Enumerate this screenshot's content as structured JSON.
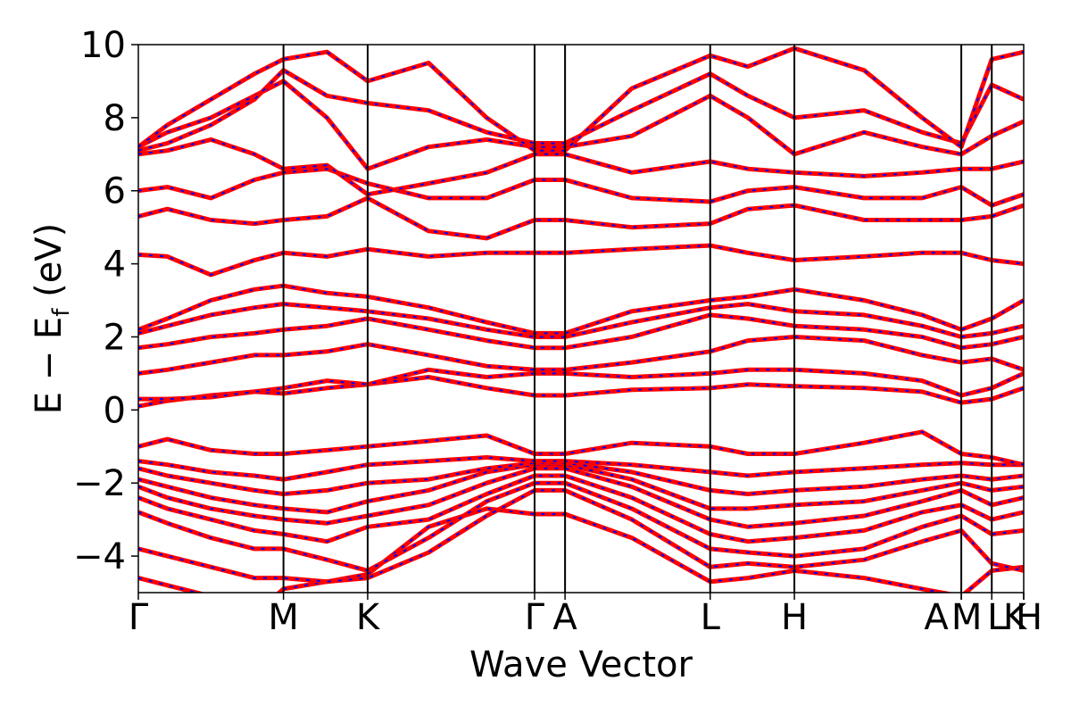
{
  "chart_data": {
    "type": "line",
    "xlabel": "Wave Vector",
    "ylabel": "E − E",
    "ylabel_sub": "f",
    "ylabel_unit": " (eV)",
    "ylim": [
      -5,
      10
    ],
    "yticks": [
      -4,
      -2,
      0,
      2,
      4,
      6,
      8,
      10
    ],
    "ytick_labels": [
      "−4",
      "−2",
      "0",
      "2",
      "4",
      "6",
      "8",
      "10"
    ],
    "grid": false,
    "legend": "none",
    "xlim": [
      0,
      3.05
    ],
    "kpoints": [
      {
        "label": "Γ",
        "x": 0.0
      },
      {
        "label": "M",
        "x": 0.5
      },
      {
        "label": "K",
        "x": 0.79
      },
      {
        "label": "Γ",
        "x": 1.365
      },
      {
        "label": "A",
        "x": 1.47
      },
      {
        "label": "L",
        "x": 1.97
      },
      {
        "label": "H",
        "x": 2.26
      },
      {
        "label": "A",
        "x": 2.835
      },
      {
        "label": "M",
        "x": 2.835
      },
      {
        "label": "L",
        "x": 2.94
      },
      {
        "label": "K",
        "x": 3.05
      },
      {
        "label": "H",
        "x": 3.05
      }
    ],
    "vlines_x": [
      0.5,
      0.79,
      1.365,
      1.47,
      1.97,
      2.26,
      2.835,
      2.94
    ],
    "style": {
      "band_color": "#ff0000",
      "overlay_color": "#0000ff",
      "frame_color": "#000000"
    },
    "series": [
      {
        "x": [
          0,
          0.1,
          0.25,
          0.4,
          0.5,
          0.65,
          0.79,
          1.0,
          1.2,
          1.365,
          1.47,
          1.7,
          1.97,
          2.1,
          2.26,
          2.5,
          2.7,
          2.835,
          2.94,
          3.05
        ],
        "y": [
          -4.6,
          -4.8,
          -5.1,
          -5.6,
          -4.9,
          -4.7,
          -4.5,
          -3.2,
          -2.7,
          -2.85,
          -2.85,
          -3.5,
          -4.7,
          -4.6,
          -4.4,
          -4.6,
          -4.9,
          -5.1,
          -4.4,
          -4.3
        ]
      },
      {
        "x": [
          0,
          0.1,
          0.25,
          0.4,
          0.5,
          0.65,
          0.79,
          1.0,
          1.2,
          1.365,
          1.47,
          1.7,
          1.97,
          2.1,
          2.26,
          2.5,
          2.7,
          2.835,
          2.94,
          3.05
        ],
        "y": [
          -3.8,
          -4.0,
          -4.3,
          -4.6,
          -4.6,
          -4.7,
          -4.6,
          -3.9,
          -2.9,
          -2.2,
          -2.2,
          -3.0,
          -4.3,
          -4.2,
          -4.3,
          -4.1,
          -3.6,
          -3.3,
          -4.2,
          -4.4
        ]
      },
      {
        "x": [
          0,
          0.1,
          0.25,
          0.4,
          0.5,
          0.65,
          0.79,
          1.0,
          1.2,
          1.365,
          1.47,
          1.7,
          1.97,
          2.1,
          2.26,
          2.5,
          2.7,
          2.835,
          2.94,
          3.05
        ],
        "y": [
          -2.8,
          -3.1,
          -3.5,
          -3.8,
          -3.8,
          -4.1,
          -4.4,
          -3.5,
          -2.5,
          -2.0,
          -2.0,
          -2.7,
          -3.8,
          -3.9,
          -4.0,
          -3.8,
          -3.2,
          -2.9,
          -3.4,
          -3.3
        ]
      },
      {
        "x": [
          0,
          0.1,
          0.25,
          0.4,
          0.5,
          0.65,
          0.79,
          1.0,
          1.2,
          1.365,
          1.47,
          1.7,
          1.97,
          2.1,
          2.26,
          2.5,
          2.7,
          2.835,
          2.94,
          3.05
        ],
        "y": [
          -2.4,
          -2.7,
          -3.0,
          -3.3,
          -3.4,
          -3.6,
          -3.2,
          -3.0,
          -2.3,
          -1.8,
          -1.8,
          -2.4,
          -3.4,
          -3.6,
          -3.5,
          -3.3,
          -2.8,
          -2.6,
          -3.0,
          -2.8
        ]
      },
      {
        "x": [
          0,
          0.1,
          0.25,
          0.4,
          0.5,
          0.65,
          0.79,
          1.0,
          1.2,
          1.365,
          1.47,
          1.7,
          1.97,
          2.1,
          2.26,
          2.5,
          2.7,
          2.835,
          2.94,
          3.05
        ],
        "y": [
          -2.1,
          -2.4,
          -2.7,
          -2.9,
          -3.0,
          -3.1,
          -2.9,
          -2.6,
          -2.0,
          -1.6,
          -1.6,
          -2.1,
          -3.0,
          -3.2,
          -3.1,
          -2.9,
          -2.5,
          -2.2,
          -2.6,
          -2.4
        ]
      },
      {
        "x": [
          0,
          0.1,
          0.25,
          0.4,
          0.5,
          0.65,
          0.79,
          1.0,
          1.2,
          1.365,
          1.47,
          1.7,
          1.97,
          2.1,
          2.26,
          2.5,
          2.7,
          2.835,
          2.94,
          3.05
        ],
        "y": [
          -1.9,
          -2.1,
          -2.4,
          -2.6,
          -2.7,
          -2.8,
          -2.5,
          -2.2,
          -1.7,
          -1.5,
          -1.5,
          -1.9,
          -2.7,
          -2.7,
          -2.6,
          -2.5,
          -2.2,
          -2.0,
          -2.2,
          -2.1
        ]
      },
      {
        "x": [
          0,
          0.1,
          0.25,
          0.4,
          0.5,
          0.65,
          0.79,
          1.0,
          1.2,
          1.365,
          1.47,
          1.7,
          1.97,
          2.1,
          2.26,
          2.5,
          2.7,
          2.835,
          2.94,
          3.05
        ],
        "y": [
          -1.6,
          -1.8,
          -2.0,
          -2.2,
          -2.3,
          -2.2,
          -2.0,
          -1.9,
          -1.6,
          -1.45,
          -1.45,
          -1.7,
          -2.2,
          -2.3,
          -2.2,
          -2.1,
          -1.9,
          -1.8,
          -1.9,
          -1.8
        ]
      },
      {
        "x": [
          0,
          0.1,
          0.25,
          0.4,
          0.5,
          0.65,
          0.79,
          1.0,
          1.2,
          1.365,
          1.47,
          1.7,
          1.97,
          2.1,
          2.26,
          2.5,
          2.7,
          2.835,
          2.94,
          3.05
        ],
        "y": [
          -1.4,
          -1.5,
          -1.7,
          -1.8,
          -1.9,
          -1.7,
          -1.5,
          -1.4,
          -1.3,
          -1.4,
          -1.4,
          -1.5,
          -1.7,
          -1.8,
          -1.7,
          -1.6,
          -1.5,
          -1.45,
          -1.5,
          -1.5
        ]
      },
      {
        "x": [
          0,
          0.1,
          0.25,
          0.4,
          0.5,
          0.65,
          0.79,
          1.0,
          1.2,
          1.365,
          1.47,
          1.7,
          1.97,
          2.1,
          2.26,
          2.5,
          2.7,
          2.835,
          2.94,
          3.05
        ],
        "y": [
          -1.0,
          -0.8,
          -1.1,
          -1.2,
          -1.2,
          -1.1,
          -1.0,
          -0.85,
          -0.7,
          -1.2,
          -1.2,
          -0.9,
          -1.0,
          -1.2,
          -1.2,
          -0.9,
          -0.6,
          -1.2,
          -1.3,
          -1.5
        ]
      },
      {
        "x": [
          0,
          0.1,
          0.25,
          0.4,
          0.5,
          0.65,
          0.79,
          1.0,
          1.2,
          1.365,
          1.47,
          1.7,
          1.97,
          2.1,
          2.26,
          2.5,
          2.7,
          2.835,
          2.94,
          3.05
        ],
        "y": [
          0.1,
          0.25,
          0.4,
          0.5,
          0.45,
          0.6,
          0.7,
          0.9,
          0.6,
          0.4,
          0.4,
          0.55,
          0.6,
          0.7,
          0.65,
          0.6,
          0.5,
          0.2,
          0.3,
          0.6
        ]
      },
      {
        "x": [
          0,
          0.1,
          0.25,
          0.4,
          0.5,
          0.65,
          0.79,
          1.0,
          1.2,
          1.365,
          1.47,
          1.7,
          1.97,
          2.1,
          2.26,
          2.5,
          2.7,
          2.835,
          2.94,
          3.05
        ],
        "y": [
          0.3,
          0.3,
          0.35,
          0.5,
          0.6,
          0.8,
          0.7,
          1.1,
          0.9,
          1.0,
          1.0,
          0.9,
          1.0,
          1.1,
          1.1,
          1.0,
          0.8,
          0.4,
          0.6,
          1.0
        ]
      },
      {
        "x": [
          0,
          0.1,
          0.25,
          0.4,
          0.5,
          0.65,
          0.79,
          1.0,
          1.2,
          1.365,
          1.47,
          1.7,
          1.97,
          2.1,
          2.26,
          2.5,
          2.7,
          2.835,
          2.94,
          3.05
        ],
        "y": [
          1.0,
          1.1,
          1.3,
          1.5,
          1.5,
          1.6,
          1.8,
          1.5,
          1.2,
          1.1,
          1.1,
          1.3,
          1.6,
          1.9,
          2.0,
          1.9,
          1.5,
          1.3,
          1.4,
          1.1
        ]
      },
      {
        "x": [
          0,
          0.1,
          0.25,
          0.4,
          0.5,
          0.65,
          0.79,
          1.0,
          1.2,
          1.365,
          1.47,
          1.7,
          1.97,
          2.1,
          2.26,
          2.5,
          2.7,
          2.835,
          2.94,
          3.05
        ],
        "y": [
          1.7,
          1.8,
          2.0,
          2.1,
          2.2,
          2.3,
          2.5,
          2.2,
          1.9,
          1.7,
          1.7,
          2.0,
          2.6,
          2.5,
          2.3,
          2.2,
          2.0,
          1.7,
          1.8,
          2.0
        ]
      },
      {
        "x": [
          0,
          0.1,
          0.25,
          0.4,
          0.5,
          0.65,
          0.79,
          1.0,
          1.2,
          1.365,
          1.47,
          1.7,
          1.97,
          2.1,
          2.26,
          2.5,
          2.7,
          2.835,
          2.94,
          3.05
        ],
        "y": [
          2.1,
          2.3,
          2.6,
          2.8,
          2.9,
          2.8,
          2.7,
          2.5,
          2.2,
          2.0,
          2.0,
          2.4,
          2.8,
          2.9,
          2.7,
          2.6,
          2.3,
          2.0,
          2.1,
          2.3
        ]
      },
      {
        "x": [
          0,
          0.1,
          0.25,
          0.4,
          0.5,
          0.65,
          0.79,
          1.0,
          1.2,
          1.365,
          1.47,
          1.7,
          1.97,
          2.1,
          2.26,
          2.5,
          2.7,
          2.835,
          2.94,
          3.05
        ],
        "y": [
          2.2,
          2.5,
          3.0,
          3.3,
          3.4,
          3.2,
          3.1,
          2.8,
          2.4,
          2.1,
          2.1,
          2.7,
          3.0,
          3.1,
          3.3,
          3.0,
          2.6,
          2.2,
          2.5,
          3.0
        ]
      },
      {
        "x": [
          0,
          0.1,
          0.25,
          0.4,
          0.5,
          0.65,
          0.79,
          1.0,
          1.2,
          1.365,
          1.47,
          1.7,
          1.97,
          2.1,
          2.26,
          2.5,
          2.7,
          2.835,
          2.94,
          3.05
        ],
        "y": [
          4.25,
          4.2,
          3.7,
          4.1,
          4.3,
          4.2,
          4.4,
          4.2,
          4.3,
          4.3,
          4.3,
          4.4,
          4.5,
          4.3,
          4.1,
          4.2,
          4.3,
          4.3,
          4.1,
          4.0
        ]
      },
      {
        "x": [
          0,
          0.1,
          0.25,
          0.4,
          0.5,
          0.65,
          0.79,
          1.0,
          1.2,
          1.365,
          1.47,
          1.7,
          1.97,
          2.1,
          2.26,
          2.5,
          2.7,
          2.835,
          2.94,
          3.05
        ],
        "y": [
          5.3,
          5.5,
          5.2,
          5.1,
          5.2,
          5.3,
          5.8,
          4.9,
          4.7,
          5.2,
          5.2,
          5.0,
          5.1,
          5.5,
          5.6,
          5.2,
          5.2,
          5.2,
          5.3,
          5.6
        ]
      },
      {
        "x": [
          0,
          0.1,
          0.25,
          0.4,
          0.5,
          0.65,
          0.79,
          1.0,
          1.2,
          1.365,
          1.47,
          1.7,
          1.97,
          2.1,
          2.26,
          2.5,
          2.7,
          2.835,
          2.94,
          3.05
        ],
        "y": [
          6.0,
          6.1,
          5.8,
          6.3,
          6.5,
          6.6,
          6.2,
          5.8,
          5.8,
          6.3,
          6.3,
          5.8,
          5.7,
          6.0,
          6.1,
          5.8,
          5.8,
          6.1,
          5.6,
          5.9
        ]
      },
      {
        "x": [
          0,
          0.1,
          0.25,
          0.4,
          0.5,
          0.65,
          0.79,
          1.0,
          1.2,
          1.365,
          1.47,
          1.7,
          1.97,
          2.1,
          2.26,
          2.5,
          2.7,
          2.835,
          2.94,
          3.05
        ],
        "y": [
          7.0,
          7.1,
          7.4,
          7.0,
          6.6,
          6.7,
          5.9,
          6.2,
          6.5,
          7.0,
          7.0,
          6.5,
          6.8,
          6.6,
          6.5,
          6.4,
          6.5,
          6.6,
          6.6,
          6.8
        ]
      },
      {
        "x": [
          0,
          0.1,
          0.25,
          0.4,
          0.5,
          0.65,
          0.79,
          1.0,
          1.2,
          1.365,
          1.47,
          1.7,
          1.97,
          2.1,
          2.26,
          2.5,
          2.7,
          2.835,
          2.94,
          3.05
        ],
        "y": [
          7.2,
          7.6,
          8.0,
          8.6,
          9.0,
          8.0,
          6.6,
          7.2,
          7.4,
          7.2,
          7.2,
          7.5,
          8.6,
          8.0,
          7.0,
          7.6,
          7.2,
          7.0,
          7.5,
          7.9
        ]
      },
      {
        "x": [
          0,
          0.1,
          0.25,
          0.4,
          0.5,
          0.65,
          0.79,
          1.0,
          1.2,
          1.365,
          1.47,
          1.7,
          1.97,
          2.1,
          2.26,
          2.5,
          2.7,
          2.835,
          2.94,
          3.05
        ],
        "y": [
          7.1,
          7.3,
          7.8,
          8.5,
          9.3,
          8.6,
          8.4,
          8.2,
          7.6,
          7.3,
          7.3,
          8.2,
          9.2,
          8.6,
          8.0,
          8.2,
          7.6,
          7.3,
          8.9,
          8.5
        ]
      },
      {
        "x": [
          0,
          0.1,
          0.25,
          0.4,
          0.5,
          0.65,
          0.79,
          1.0,
          1.2,
          1.365,
          1.47,
          1.7,
          1.97,
          2.1,
          2.26,
          2.5,
          2.7,
          2.835,
          2.94,
          3.05
        ],
        "y": [
          7.2,
          7.8,
          8.5,
          9.2,
          9.6,
          9.8,
          9.0,
          9.5,
          8.0,
          7.1,
          7.1,
          8.8,
          9.7,
          9.4,
          9.9,
          9.3,
          8.0,
          7.2,
          9.6,
          9.8
        ]
      }
    ]
  }
}
